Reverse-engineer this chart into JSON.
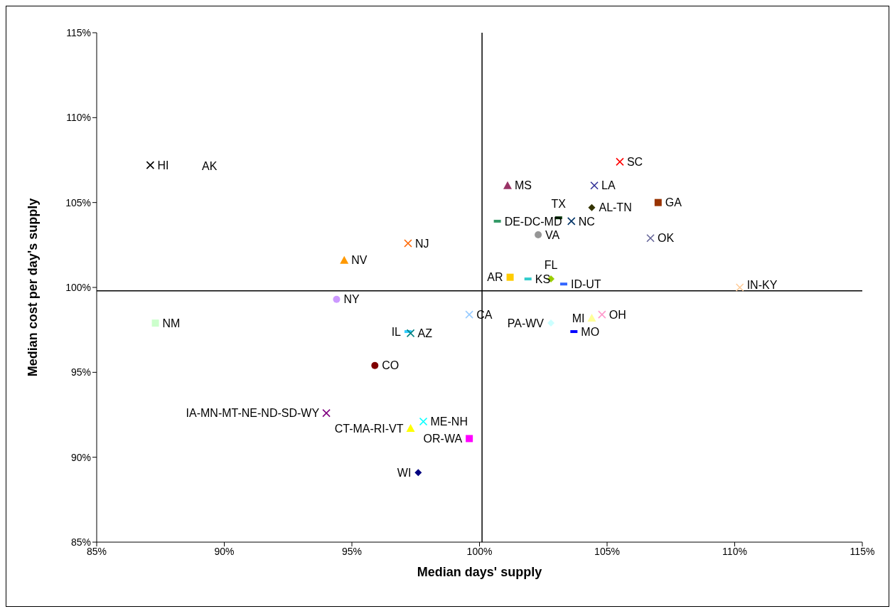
{
  "chart_data": {
    "type": "scatter",
    "xlabel": "Median days' supply",
    "ylabel": "Median cost per day's supply",
    "xlim": [
      85,
      115
    ],
    "ylim": [
      85,
      115
    ],
    "xticks": [
      {
        "value": 85,
        "label": "85%"
      },
      {
        "value": 90,
        "label": "90%"
      },
      {
        "value": 95,
        "label": "95%"
      },
      {
        "value": 100,
        "label": "100%"
      },
      {
        "value": 105,
        "label": "105%"
      },
      {
        "value": 110,
        "label": "110%"
      },
      {
        "value": 115,
        "label": "115%"
      }
    ],
    "yticks": [
      {
        "value": 85,
        "label": "85%"
      },
      {
        "value": 90,
        "label": "90%"
      },
      {
        "value": 95,
        "label": "95%"
      },
      {
        "value": 100,
        "label": "100%"
      },
      {
        "value": 105,
        "label": "105%"
      },
      {
        "value": 110,
        "label": "110%"
      },
      {
        "value": 115,
        "label": "115%"
      }
    ],
    "annotations": [
      "AK"
    ],
    "ref_lines": [
      {
        "axis": "x",
        "value": 100.1,
        "color": "#000000"
      },
      {
        "axis": "y",
        "value": 99.8,
        "color": "#000000"
      }
    ],
    "series": [
      {
        "name": "HI",
        "color": "#000000",
        "marker": "cross",
        "x": [
          87.1
        ],
        "values": [
          107.2
        ]
      },
      {
        "name": "NJ",
        "color": "#ff6600",
        "marker": "cross",
        "x": [
          97.2
        ],
        "values": [
          102.6
        ]
      },
      {
        "name": "NV",
        "color": "#ff9900",
        "marker": "triangle",
        "x": [
          94.7
        ],
        "values": [
          101.6
        ]
      },
      {
        "name": "NY",
        "color": "#cc99ff",
        "marker": "circle",
        "x": [
          94.4
        ],
        "values": [
          99.3
        ]
      },
      {
        "name": "NM",
        "color": "#ccffcc",
        "marker": "square",
        "x": [
          87.3
        ],
        "values": [
          97.9
        ]
      },
      {
        "name": "IL",
        "color": "#33ccff",
        "marker": "square",
        "x": [
          97.2
        ],
        "values": [
          97.4
        ]
      },
      {
        "name": "AZ",
        "color": "#008080",
        "marker": "cross",
        "x": [
          97.3
        ],
        "values": [
          97.3
        ]
      },
      {
        "name": "CO",
        "color": "#800000",
        "marker": "circle",
        "x": [
          95.9
        ],
        "values": [
          95.4
        ]
      },
      {
        "name": "IA-MN-MT-NE-ND-SD-WY",
        "color": "#800080",
        "marker": "cross",
        "x": [
          94.0
        ],
        "values": [
          92.6
        ]
      },
      {
        "name": "CT-MA-RI-VT",
        "color": "#ffff00",
        "marker": "triangle",
        "x": [
          97.3
        ],
        "values": [
          91.7
        ]
      },
      {
        "name": "ME-NH",
        "color": "#00ffff",
        "marker": "cross",
        "x": [
          97.8
        ],
        "values": [
          92.1
        ]
      },
      {
        "name": "OR-WA",
        "color": "#ff00ff",
        "marker": "square",
        "x": [
          99.6
        ],
        "values": [
          91.1
        ]
      },
      {
        "name": "WI",
        "color": "#000080",
        "marker": "diamond",
        "x": [
          97.6
        ],
        "values": [
          89.1
        ]
      },
      {
        "name": "CA",
        "color": "#99ccff",
        "marker": "cross",
        "x": [
          99.6
        ],
        "values": [
          98.4
        ]
      },
      {
        "name": "PA-WV",
        "color": "#ccffff",
        "marker": "diamond",
        "x": [
          102.8
        ],
        "values": [
          97.9
        ]
      },
      {
        "name": "MI",
        "color": "#ffff99",
        "marker": "triangle",
        "x": [
          104.4
        ],
        "values": [
          98.2
        ]
      },
      {
        "name": "OH",
        "color": "#ff99cc",
        "marker": "cross",
        "x": [
          104.8
        ],
        "values": [
          98.4
        ]
      },
      {
        "name": "MO",
        "color": "#0000ff",
        "marker": "square",
        "x": [
          103.7
        ],
        "values": [
          97.4
        ]
      },
      {
        "name": "SC",
        "color": "#ff0000",
        "marker": "cross",
        "x": [
          105.5
        ],
        "values": [
          107.4
        ]
      },
      {
        "name": "MS",
        "color": "#993366",
        "marker": "triangle",
        "x": [
          101.1
        ],
        "values": [
          106.0
        ]
      },
      {
        "name": "LA",
        "color": "#333399",
        "marker": "cross",
        "x": [
          104.5
        ],
        "values": [
          106.0
        ]
      },
      {
        "name": "TX",
        "color": "#003300",
        "marker": "square",
        "x": [
          103.1
        ],
        "values": [
          104.1
        ]
      },
      {
        "name": "AL-TN",
        "color": "#333300",
        "marker": "diamond",
        "x": [
          104.4
        ],
        "values": [
          104.7
        ]
      },
      {
        "name": "GA",
        "color": "#993300",
        "marker": "square",
        "x": [
          107.0
        ],
        "values": [
          105.0
        ]
      },
      {
        "name": "DE-DC-MD",
        "color": "#339966",
        "marker": "square",
        "x": [
          100.7
        ],
        "values": [
          103.9
        ]
      },
      {
        "name": "NC",
        "color": "#003366",
        "marker": "cross",
        "x": [
          103.6
        ],
        "values": [
          103.9
        ]
      },
      {
        "name": "VA",
        "color": "#969696",
        "marker": "circle",
        "x": [
          102.3
        ],
        "values": [
          103.1
        ]
      },
      {
        "name": "OK",
        "color": "#666699",
        "marker": "cross",
        "x": [
          106.7
        ],
        "values": [
          102.9
        ]
      },
      {
        "name": "FL",
        "color": "#99cc00",
        "marker": "diamond",
        "x": [
          102.8
        ],
        "values": [
          100.5
        ]
      },
      {
        "name": "AR",
        "color": "#ffcc00",
        "marker": "square",
        "x": [
          101.2
        ],
        "values": [
          100.6
        ]
      },
      {
        "name": "KS",
        "color": "#33cccc",
        "marker": "square",
        "x": [
          101.9
        ],
        "values": [
          100.5
        ]
      },
      {
        "name": "ID-UT",
        "color": "#3366ff",
        "marker": "square",
        "x": [
          103.3
        ],
        "values": [
          100.2
        ]
      },
      {
        "name": "IN-KY",
        "color": "#ffcc99",
        "marker": "cross",
        "x": [
          110.2
        ],
        "values": [
          100.0
        ]
      }
    ]
  }
}
